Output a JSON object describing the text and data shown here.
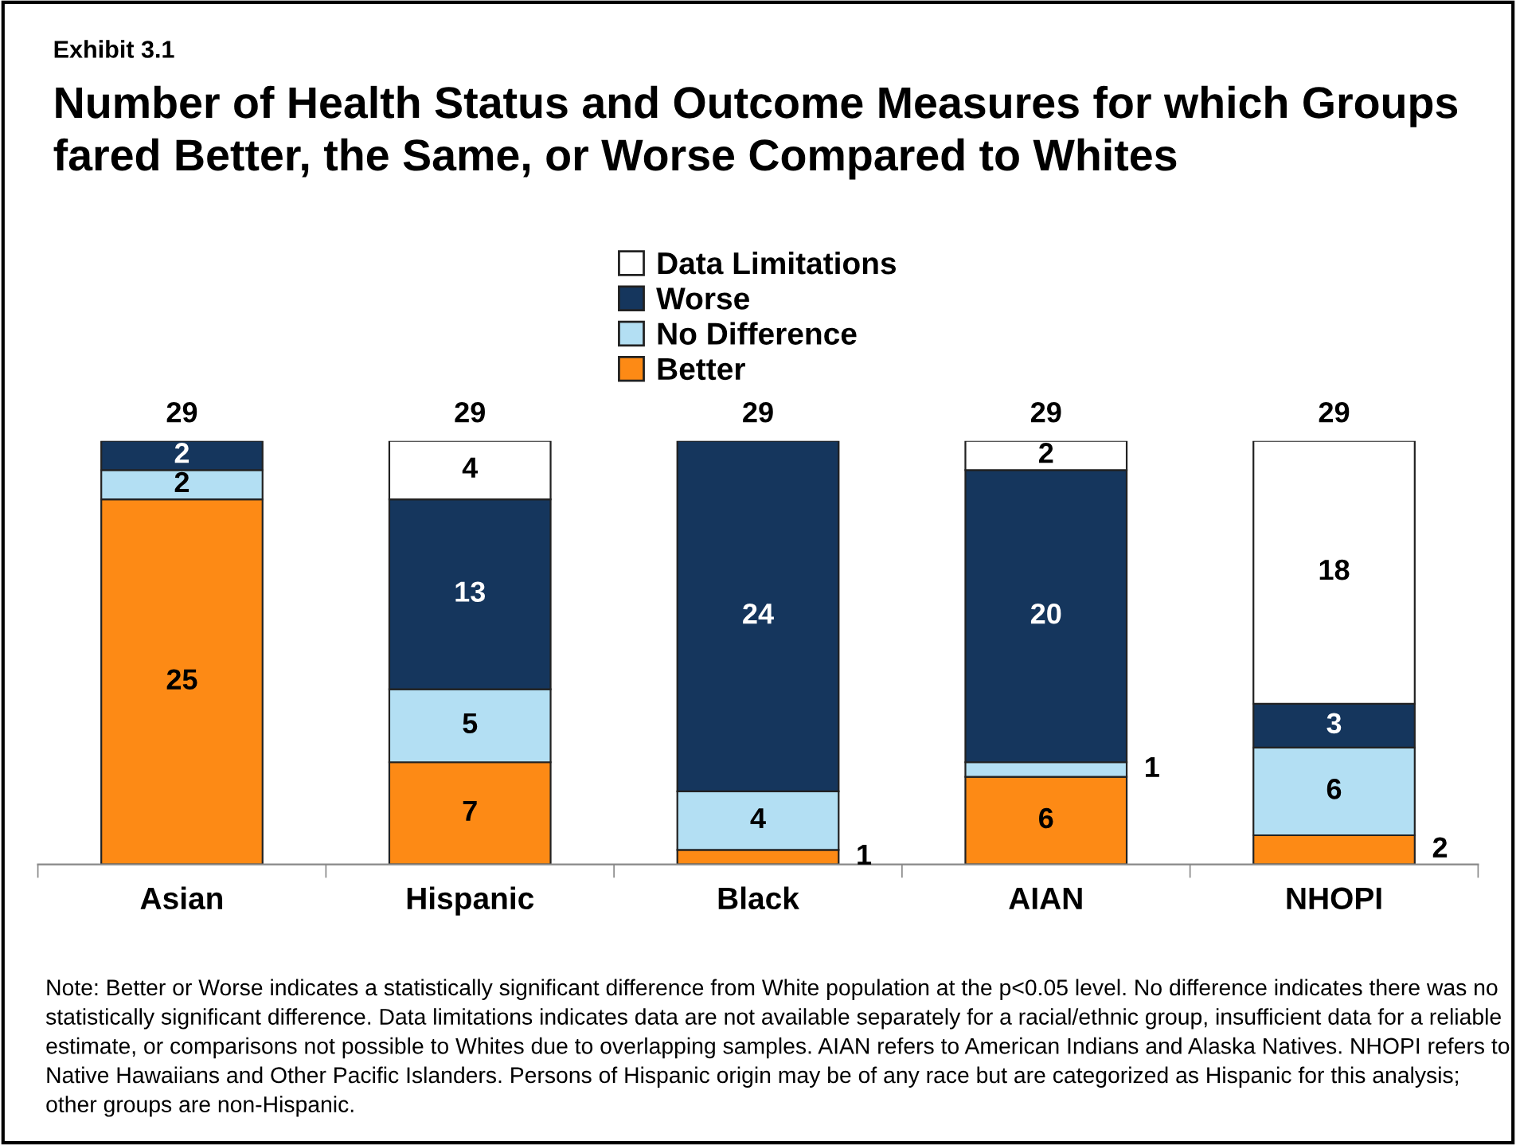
{
  "chart_data": {
    "type": "bar",
    "stacked": true,
    "subtitle": "Exhibit 3.1",
    "title": "Number of Health Status and Outcome Measures for which Groups fared Better, the Same, or Worse Compared to Whites",
    "categories": [
      "Asian",
      "Hispanic",
      "Black",
      "AIAN",
      "NHOPI"
    ],
    "series": [
      {
        "name": "Better",
        "color": "#fd8a15",
        "values": [
          25,
          7,
          1,
          6,
          2
        ],
        "value_labels": [
          "25",
          "7",
          "1",
          "6",
          "2"
        ]
      },
      {
        "name": "No Difference",
        "color": "#b3dff3",
        "values": [
          2,
          5,
          4,
          1,
          6
        ],
        "value_labels": [
          "2",
          "5",
          "4",
          "1",
          "6"
        ]
      },
      {
        "name": "Worse",
        "color": "#15365d",
        "values": [
          2,
          13,
          24,
          20,
          3
        ],
        "value_labels": [
          "2",
          "13",
          "24",
          "20",
          "3"
        ]
      },
      {
        "name": "Data Limitations",
        "color": "#ffffff",
        "values": [
          0,
          4,
          0,
          2,
          18
        ],
        "value_labels": [
          null,
          "4",
          null,
          "2",
          "18"
        ]
      }
    ],
    "totals": [
      "29",
      "29",
      "29",
      "29",
      "29"
    ],
    "legend": "top",
    "grid": false,
    "annotations": [
      "Note: Better or Worse indicates a statistically significant difference from White population at the p<0.05 level. No difference indicates there was no statistically significant difference. Data limitations indicates data are not available separately for a racial/ethnic group, insufficient data for a reliable estimate, or comparisons not possible to Whites due to overlapping samples. AIAN refers to American Indians and Alaska Natives. NHOPI refers to Native Hawaiians and Other Pacific Islanders. Persons of Hispanic origin may be of any race but are categorized as Hispanic for this analysis; other groups are non-Hispanic."
    ]
  }
}
